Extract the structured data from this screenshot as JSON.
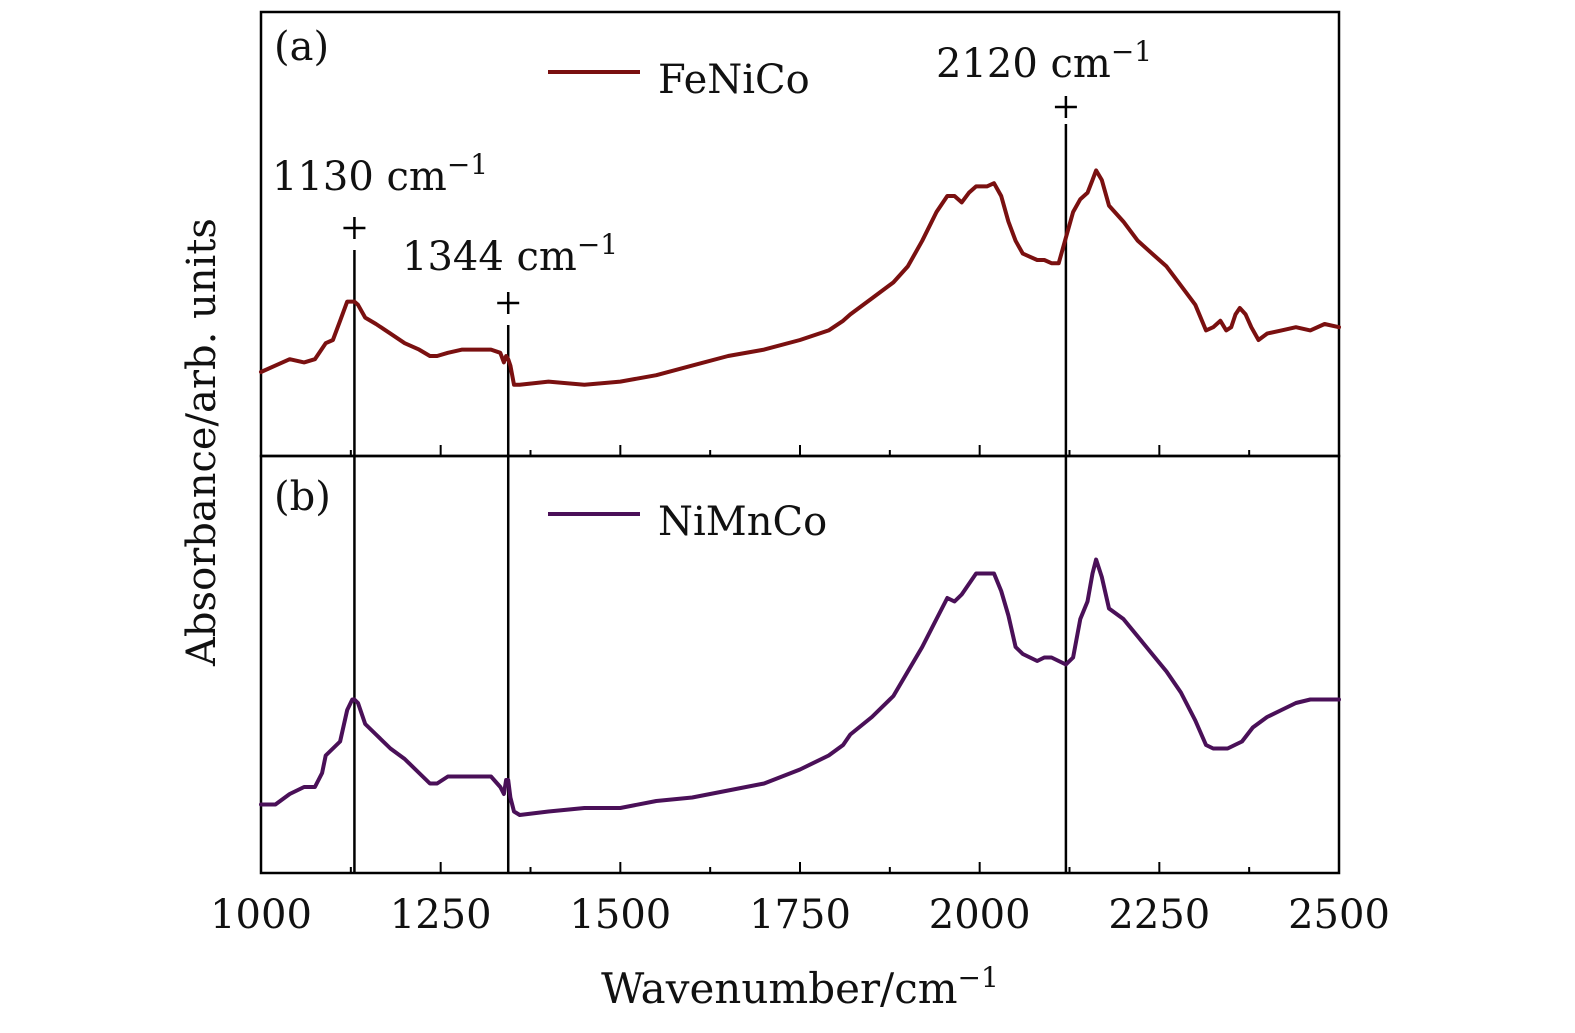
{
  "chart_data": {
    "type": "line",
    "title": "",
    "xlabel": "Wavenumber/cm",
    "xlabel_sup": "−1",
    "ylabel": "Absorbance/arb. units",
    "xlim": [
      1000,
      2500
    ],
    "xticks": [
      1000,
      1250,
      1500,
      1750,
      2000,
      2250,
      2500
    ],
    "panels": [
      {
        "tag": "(a)",
        "series": [
          {
            "name": "FeNiCo",
            "color": "#7a1010",
            "ylim": [
              0,
              1
            ],
            "x": [
              1000,
              1020,
              1040,
              1060,
              1075,
              1090,
              1100,
              1110,
              1120,
              1127,
              1130,
              1135,
              1145,
              1160,
              1180,
              1200,
              1220,
              1235,
              1245,
              1260,
              1280,
              1300,
              1320,
              1333,
              1338,
              1341,
              1344,
              1347,
              1352,
              1360,
              1400,
              1450,
              1500,
              1550,
              1600,
              1650,
              1700,
              1750,
              1790,
              1810,
              1820,
              1850,
              1880,
              1900,
              1920,
              1940,
              1955,
              1965,
              1975,
              1985,
              1995,
              2010,
              2020,
              2030,
              2040,
              2050,
              2060,
              2070,
              2080,
              2090,
              2100,
              2110,
              2120,
              2130,
              2140,
              2150,
              2157,
              2162,
              2170,
              2180,
              2200,
              2220,
              2240,
              2260,
              2280,
              2300,
              2315,
              2325,
              2335,
              2343,
              2350,
              2356,
              2362,
              2370,
              2378,
              2388,
              2400,
              2420,
              2440,
              2460,
              2480,
              2500
            ],
            "y": [
              0.15,
              0.17,
              0.19,
              0.18,
              0.19,
              0.24,
              0.25,
              0.31,
              0.37,
              0.37,
              0.37,
              0.36,
              0.32,
              0.3,
              0.27,
              0.24,
              0.22,
              0.2,
              0.2,
              0.21,
              0.22,
              0.22,
              0.22,
              0.21,
              0.18,
              0.2,
              0.19,
              0.17,
              0.11,
              0.11,
              0.12,
              0.11,
              0.12,
              0.14,
              0.17,
              0.2,
              0.22,
              0.25,
              0.28,
              0.31,
              0.33,
              0.38,
              0.43,
              0.48,
              0.56,
              0.65,
              0.7,
              0.7,
              0.68,
              0.71,
              0.73,
              0.73,
              0.74,
              0.7,
              0.62,
              0.56,
              0.52,
              0.51,
              0.5,
              0.5,
              0.49,
              0.49,
              0.57,
              0.65,
              0.69,
              0.71,
              0.75,
              0.78,
              0.75,
              0.67,
              0.62,
              0.56,
              0.52,
              0.48,
              0.42,
              0.36,
              0.28,
              0.29,
              0.31,
              0.28,
              0.29,
              0.33,
              0.35,
              0.33,
              0.29,
              0.25,
              0.27,
              0.28,
              0.29,
              0.28,
              0.3,
              0.29
            ]
          }
        ],
        "legend": "top-center"
      },
      {
        "tag": "(b)",
        "series": [
          {
            "name": "NiMnCo",
            "color": "#4a1058",
            "ylim": [
              0,
              1
            ],
            "x": [
              1000,
              1020,
              1040,
              1060,
              1075,
              1085,
              1090,
              1100,
              1110,
              1120,
              1127,
              1130,
              1135,
              1145,
              1160,
              1180,
              1200,
              1220,
              1235,
              1245,
              1260,
              1280,
              1300,
              1320,
              1333,
              1338,
              1341,
              1344,
              1347,
              1352,
              1360,
              1400,
              1450,
              1500,
              1550,
              1600,
              1650,
              1700,
              1750,
              1790,
              1810,
              1820,
              1850,
              1880,
              1900,
              1920,
              1940,
              1955,
              1965,
              1975,
              1985,
              1995,
              2010,
              2020,
              2030,
              2040,
              2050,
              2060,
              2070,
              2080,
              2090,
              2100,
              2110,
              2120,
              2130,
              2140,
              2150,
              2157,
              2162,
              2170,
              2180,
              2200,
              2220,
              2240,
              2260,
              2280,
              2300,
              2315,
              2325,
              2335,
              2345,
              2355,
              2365,
              2380,
              2400,
              2420,
              2440,
              2460,
              2480,
              2500
            ],
            "y": [
              0.13,
              0.13,
              0.16,
              0.18,
              0.18,
              0.22,
              0.27,
              0.29,
              0.31,
              0.4,
              0.43,
              0.43,
              0.42,
              0.36,
              0.33,
              0.29,
              0.26,
              0.22,
              0.19,
              0.19,
              0.21,
              0.21,
              0.21,
              0.21,
              0.18,
              0.16,
              0.2,
              0.2,
              0.15,
              0.11,
              0.1,
              0.11,
              0.12,
              0.12,
              0.14,
              0.15,
              0.17,
              0.19,
              0.23,
              0.27,
              0.3,
              0.33,
              0.38,
              0.44,
              0.51,
              0.58,
              0.66,
              0.72,
              0.71,
              0.73,
              0.76,
              0.79,
              0.79,
              0.79,
              0.74,
              0.67,
              0.58,
              0.56,
              0.55,
              0.54,
              0.55,
              0.55,
              0.54,
              0.53,
              0.55,
              0.66,
              0.71,
              0.79,
              0.83,
              0.78,
              0.69,
              0.66,
              0.61,
              0.56,
              0.51,
              0.45,
              0.37,
              0.3,
              0.29,
              0.29,
              0.29,
              0.3,
              0.31,
              0.35,
              0.38,
              0.4,
              0.42,
              0.43,
              0.43,
              0.43
            ]
          }
        ],
        "legend": "top-center"
      }
    ],
    "annotations": [
      {
        "label": "1130 cm",
        "sup": "−1",
        "x": 1130
      },
      {
        "label": "1344 cm",
        "sup": "−1",
        "x": 1344
      },
      {
        "label": "2120 cm",
        "sup": "−1",
        "x": 2120
      }
    ]
  }
}
